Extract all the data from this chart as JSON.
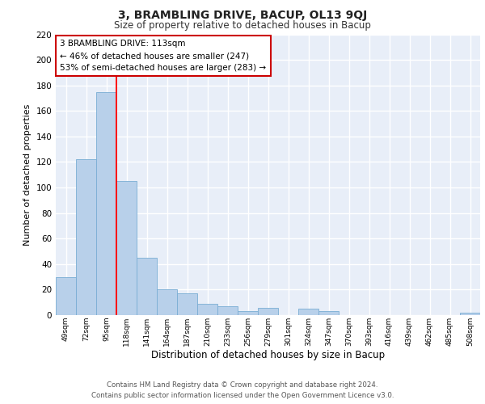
{
  "title": "3, BRAMBLING DRIVE, BACUP, OL13 9QJ",
  "subtitle": "Size of property relative to detached houses in Bacup",
  "xlabel": "Distribution of detached houses by size in Bacup",
  "ylabel": "Number of detached properties",
  "bar_color": "#b8d0ea",
  "bar_edge_color": "#7aadd4",
  "background_color": "#e8eef8",
  "grid_color": "#ffffff",
  "categories": [
    "49sqm",
    "72sqm",
    "95sqm",
    "118sqm",
    "141sqm",
    "164sqm",
    "187sqm",
    "210sqm",
    "233sqm",
    "256sqm",
    "279sqm",
    "301sqm",
    "324sqm",
    "347sqm",
    "370sqm",
    "393sqm",
    "416sqm",
    "439sqm",
    "462sqm",
    "485sqm",
    "508sqm"
  ],
  "values": [
    30,
    122,
    175,
    105,
    45,
    20,
    17,
    9,
    7,
    3,
    6,
    0,
    5,
    3,
    0,
    0,
    0,
    0,
    0,
    0,
    2
  ],
  "red_line_x": 2.5,
  "annotation_text": "3 BRAMBLING DRIVE: 113sqm\n← 46% of detached houses are smaller (247)\n53% of semi-detached houses are larger (283) →",
  "ylim": [
    0,
    220
  ],
  "yticks": [
    0,
    20,
    40,
    60,
    80,
    100,
    120,
    140,
    160,
    180,
    200,
    220
  ],
  "footer": "Contains HM Land Registry data © Crown copyright and database right 2024.\nContains public sector information licensed under the Open Government Licence v3.0.",
  "annotation_box_color": "#ffffff",
  "annotation_box_edge": "#cc0000"
}
